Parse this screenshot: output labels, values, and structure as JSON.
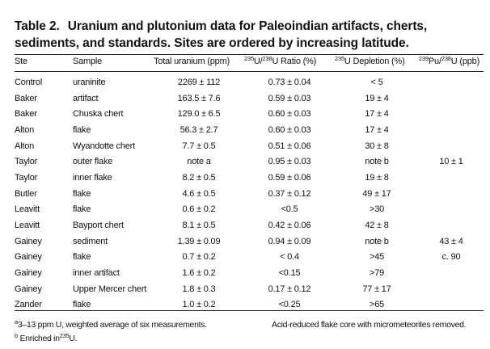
{
  "caption": {
    "label": "Table 2.",
    "text": "Uranium and plutonium data for Paleoindian artifacts, cherts, sediments, and standards. Sites are ordered by increasing latitude."
  },
  "header": {
    "site": "Ste",
    "sample": "Sample",
    "total": "Total uranium (ppm)",
    "ratio_sup": "235",
    "ratio_mid": "U/",
    "ratio_sup2": "238",
    "ratio_end": "U Ratio (%)",
    "depl_sup": "235",
    "depl_end": "U Depletion (%)",
    "pu_sup": "239",
    "pu_mid": "Pu/",
    "pu_sup2": "238",
    "pu_end": "U (ppb)"
  },
  "rows": [
    {
      "site": "Control",
      "bold": false,
      "sample": "uraninite",
      "total": "2269 ± 112",
      "ratio": "0.73 ± 0.04",
      "depletion": "< 5",
      "pu": ""
    },
    {
      "site": "Baker",
      "bold": true,
      "sample": "artifact",
      "total": "163.5 ± 7.6",
      "ratio": "0.59 ± 0.03",
      "depletion": "19 ± 4",
      "pu": ""
    },
    {
      "site": "Baker",
      "bold": true,
      "sample": "Chuska chert",
      "total": "129.0 ± 6.5",
      "ratio": "0.60 ± 0.03",
      "depletion": "17 ± 4",
      "pu": ""
    },
    {
      "site": "Alton",
      "bold": true,
      "sample": "flake",
      "total": "56.3 ± 2.7",
      "ratio": "0.60 ± 0.03",
      "depletion": "17 ± 4",
      "pu": ""
    },
    {
      "site": "Alton",
      "bold": true,
      "sample": "Wyandotte chert",
      "total": "7.7 ± 0.5",
      "ratio": "0.51 ± 0.06",
      "depletion": "30 ± 8",
      "pu": ""
    },
    {
      "site": "Taylor",
      "bold": true,
      "sample": "outer flake",
      "total": "note a",
      "ratio": "0.95 ± 0.03",
      "depletion": "note b",
      "pu": "10 ± 1"
    },
    {
      "site": "Taylor",
      "bold": true,
      "sample": "inner flake",
      "total": "8.2 ± 0.5",
      "ratio": "0.59 ± 0.06",
      "depletion": "19 ± 8",
      "pu": ""
    },
    {
      "site": "Butler",
      "bold": true,
      "sample": "flake",
      "total": "4.6 ± 0.5",
      "ratio": "0.37 ± 0.12",
      "depletion": "49 ± 17",
      "pu": ""
    },
    {
      "site": "Leavitt",
      "bold": true,
      "sample": "flake",
      "total": "0.6 ± 0.2",
      "ratio": "<0.5",
      "depletion": ">30",
      "pu": ""
    },
    {
      "site": "Leavitt",
      "bold": true,
      "sample": "Bayport chert",
      "total": "8.1 ± 0.5",
      "ratio": "0.42 ± 0.06",
      "depletion": "42 ± 8",
      "pu": ""
    },
    {
      "site": "Gainey",
      "bold": true,
      "sample": "sediment",
      "total": "1.39 ± 0.09",
      "ratio": "0.94 ± 0.09",
      "depletion": "note b",
      "pu": "43 ± 4"
    },
    {
      "site": "Gainey",
      "bold": true,
      "sample": "flake",
      "total": "0.7 ± 0.2",
      "ratio": "< 0.4",
      "depletion": ">45",
      "pu": "c. 90"
    },
    {
      "site": "Gainey",
      "bold": true,
      "sample": "inner artifact",
      "total": "1.6 ± 0.2",
      "ratio": "<0.15",
      "depletion": ">79",
      "pu": ""
    },
    {
      "site": "Gainey",
      "bold": true,
      "sample": "Upper Mercer chert",
      "total": "1.8 ± 0.3",
      "ratio": "0.17 ± 0.12",
      "depletion": "77 ± 17",
      "pu": ""
    },
    {
      "site": "Zander",
      "bold": true,
      "sample": "flake",
      "total": "1.0 ± 0.2",
      "ratio": "<0.25",
      "depletion": ">65",
      "pu": ""
    }
  ],
  "footnotes": {
    "a_mark": "a",
    "a_text": "3–13 ppm U, weighted average of six measurements.",
    "a_right": "Acid-reduced flake core with micrometeorites removed.",
    "b_mark": "b",
    "b_text": "Enriched in",
    "b_sup": "235",
    "b_end": "U."
  }
}
